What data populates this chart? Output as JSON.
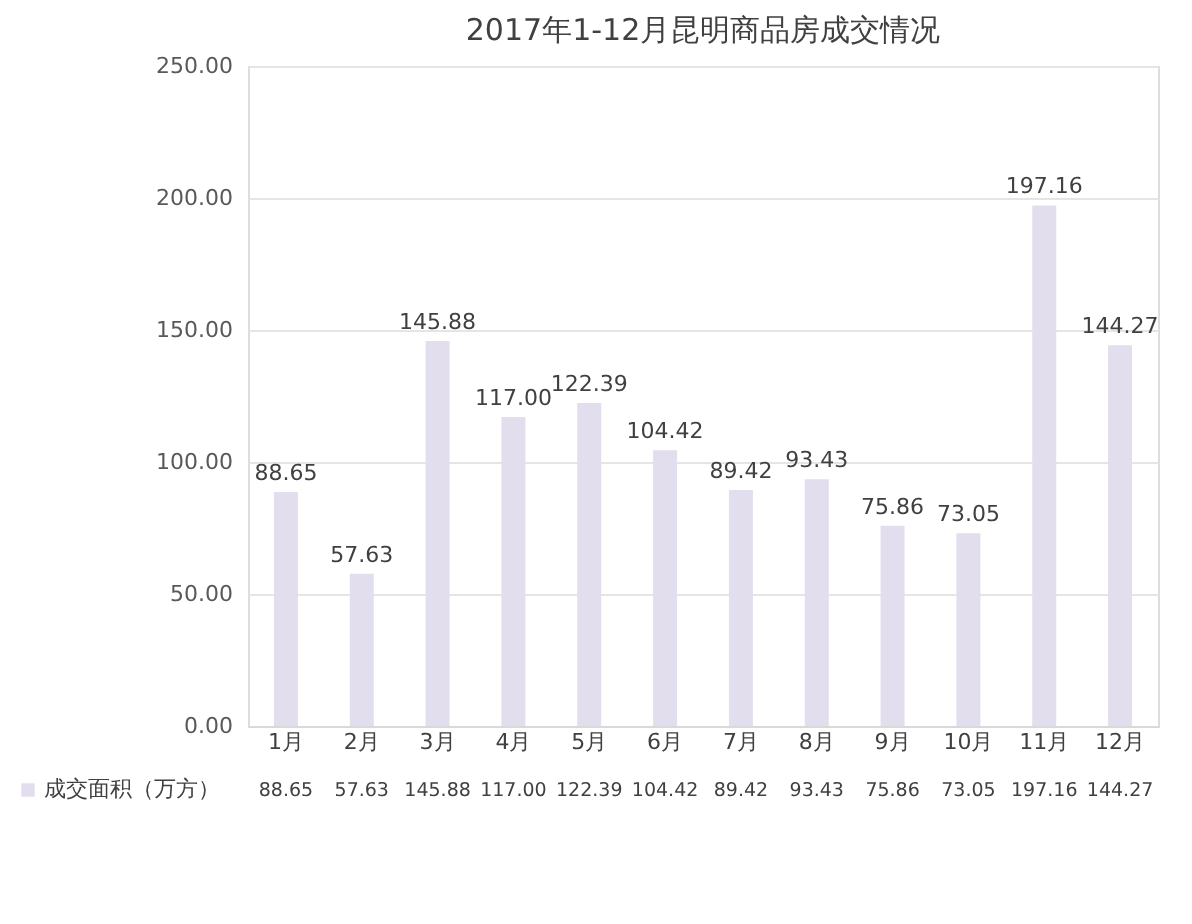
{
  "chart_data": {
    "type": "bar",
    "title": "2017年1-12月昆明商品房成交情况",
    "categories": [
      "1月",
      "2月",
      "3月",
      "4月",
      "5月",
      "6月",
      "7月",
      "8月",
      "9月",
      "10月",
      "11月",
      "12月"
    ],
    "series": [
      {
        "name": "成交面积（万方）",
        "color": "#e2deed",
        "values": [
          88.65,
          57.63,
          145.88,
          117.0,
          122.39,
          104.42,
          89.42,
          93.43,
          75.86,
          73.05,
          197.16,
          144.27
        ],
        "value_labels": [
          "88.65",
          "57.63",
          "145.88",
          "117.00",
          "122.39",
          "104.42",
          "89.42",
          "93.43",
          "75.86",
          "73.05",
          "197.16",
          "144.27"
        ]
      }
    ],
    "ylim": [
      0,
      250
    ],
    "yticks": [
      {
        "value": 0,
        "label": "0.00"
      },
      {
        "value": 50,
        "label": "50.00"
      },
      {
        "value": 100,
        "label": "100.00"
      },
      {
        "value": 150,
        "label": "150.00"
      },
      {
        "value": 200,
        "label": "200.00"
      },
      {
        "value": 250,
        "label": "250.00"
      }
    ],
    "grid": "y",
    "legend": "bottom"
  }
}
